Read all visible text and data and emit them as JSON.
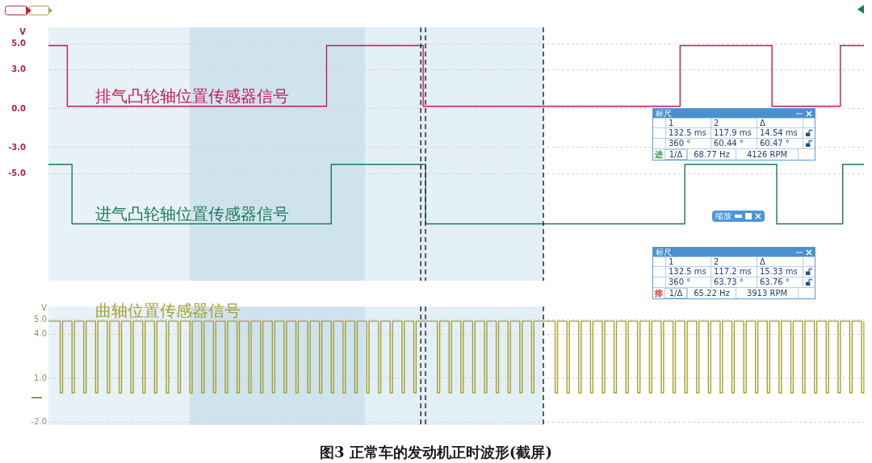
{
  "chart_data": [
    {
      "type": "step",
      "ylabel": "V",
      "categories": [
        null,
        null,
        null,
        null,
        null,
        null,
        null,
        null,
        null,
        null,
        null,
        null,
        null,
        null,
        null,
        null,
        null,
        null,
        null,
        null,
        null,
        null,
        null,
        null,
        null,
        null,
        null,
        null,
        null,
        null,
        null,
        null,
        null,
        null,
        null,
        null,
        null,
        null,
        null,
        null,
        null,
        null,
        null,
        null,
        null,
        null,
        null,
        null,
        null,
        null,
        null,
        null,
        null,
        null,
        null,
        null,
        null,
        null,
        null,
        null,
        null,
        null,
        null,
        null,
        null,
        null,
        null,
        null,
        null,
        null,
        null,
        null,
        null,
        null,
        null,
        null,
        null,
        null,
        null,
        null,
        null,
        null,
        null,
        null,
        null,
        null,
        null,
        null,
        null,
        null,
        null,
        null,
        null,
        null,
        null,
        null,
        null,
        null,
        null,
        null,
        null,
        null,
        null,
        null,
        null,
        null,
        null,
        null,
        null,
        null,
        null,
        null,
        null,
        null,
        null,
        null,
        null,
        null,
        null,
        null,
        null,
        null,
        null,
        null,
        null,
        null,
        null,
        null,
        null,
        null,
        null,
        null,
        null,
        null,
        null,
        null,
        null,
        null,
        null,
        null,
        null,
        null,
        null,
        null,
        null,
        null,
        null,
        null,
        null,
        null,
        null,
        null,
        null,
        null,
        null,
        null,
        null,
        null,
        null,
        null,
        null,
        null,
        null,
        null,
        null,
        null,
        null,
        null,
        null,
        null,
        null,
        null,
        null,
        null,
        null,
        null,
        null,
        null,
        null,
        null,
        null,
        null,
        null,
        null,
        null,
        null,
        null,
        null,
        null,
        null,
        null,
        null,
        null,
        null,
        null,
        null,
        null,
        null,
        null,
        null,
        null,
        null,
        null,
        null,
        null,
        null,
        null,
        null,
        null,
        null,
        null,
        null,
        null,
        null,
        null,
        null,
        null,
        null,
        null,
        null,
        null,
        null,
        null,
        null,
        null,
        null,
        null,
        null,
        null,
        null,
        null,
        null,
        null,
        null,
        null,
        null,
        null,
        null,
        null,
        null,
        null,
        null,
        null,
        null,
        null,
        null,
        null,
        null,
        null,
        null,
        null,
        null,
        null,
        null,
        null,
        null,
        null,
        null,
        null,
        null,
        null,
        null,
        null,
        null,
        null,
        null,
        null,
        null,
        null,
        null,
        null,
        null,
        null,
        null,
        null,
        null,
        null,
        null,
        null,
        null,
        null,
        null,
        null,
        null,
        null,
        null,
        null,
        null,
        null,
        null,
        null,
        null,
        null,
        null,
        null,
        null,
        null,
        null,
        null,
        null,
        null,
        null,
        null,
        null,
        null,
        null,
        null,
        null,
        null,
        null,
        null,
        null,
        null,
        null,
        null,
        null,
        null,
        null,
        null,
        null,
        null,
        null,
        null,
        null,
        null,
        null,
        null,
        null,
        null,
        null,
        null,
        null,
        null,
        null,
        null,
        null,
        null,
        null,
        null,
        null,
        null,
        null,
        null,
        null,
        null,
        null,
        null
      ],
      "series": [
        {
          "name": "排气凸轮轴位置传感器信号",
          "color": "#c8174f",
          "values": [
            4.9,
            4.9,
            4.9,
            4.9,
            4.9,
            4.9,
            4.9,
            4.9,
            0.2,
            0.2,
            0.2,
            0.2,
            0.2,
            0.2,
            0.2,
            0.2,
            0.2,
            0.2,
            0.2,
            0.2,
            0.2,
            0.2,
            0.2,
            0.2,
            0.2,
            0.2,
            0.2,
            0.2,
            0.2,
            0.2,
            0.2,
            0.2,
            0.2,
            0.2,
            0.2,
            0.2,
            0.2,
            0.2,
            0.2,
            0.2,
            0.2,
            0.2,
            0.2,
            0.2,
            0.2,
            0.2,
            0.2,
            0.2,
            0.2,
            0.2,
            0.2,
            0.2,
            0.2,
            0.2,
            0.2,
            0.2,
            0.2,
            0.2,
            0.2,
            0.2,
            0.2,
            0.2,
            0.2,
            0.2,
            0.2,
            0.2,
            0.2,
            0.2,
            0.2,
            0.2,
            0.2,
            0.2,
            0.2,
            0.2,
            0.2,
            0.2,
            0.2,
            0.2,
            0.2,
            0.2,
            0.2,
            0.2,
            0.2,
            0.2,
            0.2,
            0.2,
            0.2,
            0.2,
            0.2,
            0.2,
            0.2,
            0.2,
            0.2,
            0.2,
            0.2,
            0.2,
            0.2,
            0.2,
            0.2,
            0.2,
            0.2,
            0.2,
            0.2,
            0.2,
            0.2,
            0.2,
            0.2,
            0.2,
            0.2,
            0.2,
            0.2,
            0.2,
            0.2,
            0.2,
            0.2,
            0.2,
            0.2,
            0.2,
            4.9,
            4.9,
            4.9,
            4.9,
            4.9,
            4.9,
            4.9,
            4.9,
            4.9,
            4.9,
            4.9,
            4.9,
            4.9,
            4.9,
            4.9,
            4.9,
            4.9,
            4.9,
            4.9,
            4.9,
            4.9,
            4.9,
            4.9,
            4.9,
            4.9,
            4.9,
            4.9,
            4.9,
            4.9,
            4.9,
            4.9,
            4.9,
            4.9,
            4.9,
            4.9,
            4.9,
            4.9,
            4.9,
            4.9,
            4.9,
            4.9,
            0.2,
            0.2,
            0.2,
            0.2,
            0.2,
            0.2,
            0.2,
            0.2,
            0.2,
            0.2,
            0.2,
            0.2,
            0.2,
            0.2,
            0.2,
            0.2,
            0.2,
            0.2,
            0.2,
            0.2,
            0.2,
            0.2,
            0.2,
            0.2,
            0.2,
            0.2,
            0.2,
            0.2,
            0.2,
            0.2,
            0.2,
            0.2,
            0.2,
            0.2,
            0.2,
            0.2,
            0.2,
            0.2,
            0.2,
            0.2,
            0.2,
            0.2,
            0.2,
            0.2,
            0.2,
            0.2,
            0.2,
            0.2,
            0.2,
            0.2,
            0.2,
            0.2,
            0.2,
            0.2,
            0.2,
            0.2,
            0.2,
            0.2,
            0.2,
            0.2,
            0.2,
            0.2,
            0.2,
            0.2,
            0.2,
            0.2,
            0.2,
            0.2,
            0.2,
            0.2,
            0.2,
            0.2,
            0.2,
            0.2,
            0.2,
            0.2,
            0.2,
            0.2,
            0.2,
            0.2,
            0.2,
            0.2,
            0.2,
            0.2,
            0.2,
            0.2,
            0.2,
            0.2,
            0.2,
            0.2,
            0.2,
            0.2,
            0.2,
            0.2,
            0.2,
            0.2,
            0.2,
            0.2,
            0.2,
            0.2,
            0.2,
            0.2,
            0.2,
            0.2,
            0.2,
            0.2,
            0.2,
            0.2,
            0.2,
            4.9,
            4.9,
            4.9,
            4.9,
            4.9,
            4.9,
            4.9,
            4.9,
            4.9,
            4.9,
            4.9,
            4.9,
            4.9,
            4.9,
            4.9,
            4.9,
            4.9,
            4.9,
            4.9,
            4.9,
            4.9,
            4.9,
            4.9,
            4.9,
            4.9,
            4.9,
            4.9,
            4.9,
            4.9,
            4.9,
            4.9,
            4.9,
            4.9,
            4.9,
            4.9,
            4.9,
            4.9,
            4.9,
            4.9,
            0.2,
            0.2,
            0.2,
            0.2,
            0.2,
            0.2,
            0.2,
            0.2,
            0.2,
            0.2,
            0.2,
            0.2,
            0.2,
            0.2,
            0.2,
            0.2,
            0.2,
            0.2,
            0.2,
            0.2,
            0.2,
            0.2,
            0.2,
            0.2,
            0.2,
            0.2,
            0.2,
            0.2,
            0.2,
            4.9,
            4.9,
            4.9,
            4.9,
            4.9,
            4.9,
            4.9,
            4.9,
            4.9,
            4.9,
            4.9
          ]
        },
        {
          "name": "进气凸轮轴位置传感器信号",
          "color": "#1b7a55",
          "values": [
            -4.3,
            -4.3,
            -4.3,
            -4.3,
            -4.3,
            -4.3,
            -4.3,
            -4.3,
            -4.3,
            -4.3,
            -8.9,
            -8.9,
            -8.9,
            -8.9,
            -8.9,
            -8.9,
            -8.9,
            -8.9,
            -8.9,
            -8.9,
            -8.9,
            -8.9,
            -8.9,
            -8.9,
            -8.9,
            -8.9,
            -8.9,
            -8.9,
            -8.9,
            -8.9,
            -8.9,
            -8.9,
            -8.9,
            -8.9,
            -8.9,
            -8.9,
            -8.9,
            -8.9,
            -8.9,
            -8.9,
            -8.9,
            -8.9,
            -8.9,
            -8.9,
            -8.9,
            -8.9,
            -8.9,
            -8.9,
            -8.9,
            -8.9,
            -8.9,
            -8.9,
            -8.9,
            -8.9,
            -8.9,
            -8.9,
            -8.9,
            -8.9,
            -8.9,
            -8.9,
            -8.9,
            -8.9,
            -8.9,
            -8.9,
            -8.9,
            -8.9,
            -8.9,
            -8.9,
            -8.9,
            -8.9,
            -8.9,
            -8.9,
            -8.9,
            -8.9,
            -8.9,
            -8.9,
            -8.9,
            -8.9,
            -8.9,
            -8.9,
            -8.9,
            -8.9,
            -8.9,
            -8.9,
            -8.9,
            -8.9,
            -8.9,
            -8.9,
            -8.9,
            -8.9,
            -8.9,
            -8.9,
            -8.9,
            -8.9,
            -8.9,
            -8.9,
            -8.9,
            -8.9,
            -8.9,
            -8.9,
            -8.9,
            -8.9,
            -8.9,
            -8.9,
            -8.9,
            -8.9,
            -8.9,
            -8.9,
            -8.9,
            -8.9,
            -8.9,
            -8.9,
            -8.9,
            -8.9,
            -8.9,
            -8.9,
            -8.9,
            -8.9,
            -8.9,
            -8.9,
            -4.3,
            -4.3,
            -4.3,
            -4.3,
            -4.3,
            -4.3,
            -4.3,
            -4.3,
            -4.3,
            -4.3,
            -4.3,
            -4.3,
            -4.3,
            -4.3,
            -4.3,
            -4.3,
            -4.3,
            -4.3,
            -4.3,
            -4.3,
            -4.3,
            -4.3,
            -4.3,
            -4.3,
            -4.3,
            -4.3,
            -4.3,
            -4.3,
            -4.3,
            -4.3,
            -4.3,
            -4.3,
            -4.3,
            -4.3,
            -4.3,
            -4.3,
            -4.3,
            -4.3,
            -4.3,
            -4.3,
            -8.9,
            -8.9,
            -8.9,
            -8.9,
            -8.9,
            -8.9,
            -8.9,
            -8.9,
            -8.9,
            -8.9,
            -8.9,
            -8.9,
            -8.9,
            -8.9,
            -8.9,
            -8.9,
            -8.9,
            -8.9,
            -8.9,
            -8.9,
            -8.9,
            -8.9,
            -8.9,
            -8.9,
            -8.9,
            -8.9,
            -8.9,
            -8.9,
            -8.9,
            -8.9,
            -8.9,
            -8.9,
            -8.9,
            -8.9,
            -8.9,
            -8.9,
            -8.9,
            -8.9,
            -8.9,
            -8.9,
            -8.9,
            -8.9,
            -8.9,
            -8.9,
            -8.9,
            -8.9,
            -8.9,
            -8.9,
            -8.9,
            -8.9,
            -8.9,
            -8.9,
            -8.9,
            -8.9,
            -8.9,
            -8.9,
            -8.9,
            -8.9,
            -8.9,
            -8.9,
            -8.9,
            -8.9,
            -8.9,
            -8.9,
            -8.9,
            -8.9,
            -8.9,
            -8.9,
            -8.9,
            -8.9,
            -8.9,
            -8.9,
            -8.9,
            -8.9,
            -8.9,
            -8.9,
            -8.9,
            -8.9,
            -8.9,
            -8.9,
            -8.9,
            -8.9,
            -8.9,
            -8.9,
            -8.9,
            -8.9,
            -8.9,
            -8.9,
            -8.9,
            -8.9,
            -8.9,
            -8.9,
            -8.9,
            -8.9,
            -8.9,
            -8.9,
            -8.9,
            -8.9,
            -8.9,
            -8.9,
            -8.9,
            -8.9,
            -8.9,
            -8.9,
            -8.9,
            -8.9,
            -8.9,
            -8.9,
            -8.9,
            -8.9,
            -4.3,
            -4.3,
            -4.3,
            -4.3,
            -4.3,
            -4.3,
            -4.3,
            -4.3,
            -4.3,
            -4.3,
            -4.3,
            -4.3,
            -4.3,
            -4.3,
            -4.3,
            -4.3,
            -4.3,
            -4.3,
            -4.3,
            -4.3,
            -4.3,
            -4.3,
            -4.3,
            -4.3,
            -4.3,
            -4.3,
            -4.3,
            -4.3,
            -4.3,
            -4.3,
            -4.3,
            -4.3,
            -4.3,
            -4.3,
            -4.3,
            -4.3,
            -4.3,
            -4.3,
            -4.3,
            -8.9,
            -8.9,
            -8.9,
            -8.9,
            -8.9,
            -8.9,
            -8.9,
            -8.9,
            -8.9,
            -8.9,
            -8.9,
            -8.9,
            -8.9,
            -8.9,
            -8.9,
            -8.9,
            -8.9,
            -8.9,
            -8.9,
            -8.9,
            -8.9,
            -8.9,
            -8.9,
            -8.9,
            -8.9,
            -8.9,
            -8.9,
            -8.9,
            -4.3,
            -4.3,
            -4.3,
            -4.3,
            -4.3,
            -4.3,
            -4.3,
            -4.3,
            -4.3,
            -4.3
          ]
        }
      ],
      "ylim": [
        -13.3,
        6.3
      ],
      "yticks": [
        {
          "value": 5,
          "label": "5.0"
        },
        {
          "value": 3,
          "label": "3.0"
        },
        {
          "value": 0,
          "label": "0.0"
        },
        {
          "value": -3,
          "label": "-3.0"
        },
        {
          "value": -5,
          "label": "-5.0"
        }
      ],
      "tick_labels": "y",
      "grid": "y",
      "marker": "none",
      "line_style": "solid"
    },
    {
      "type": "step",
      "title": "图3 正常车的发动机正时波形(截屏)",
      "ylabel": "V",
      "categories": [
        null,
        null,
        null,
        null,
        null,
        null,
        null,
        null,
        null,
        null,
        null,
        null,
        null,
        null,
        null,
        null,
        null,
        null,
        null,
        null,
        null,
        null,
        null,
        null,
        null,
        null,
        null,
        null,
        null,
        null,
        null,
        null,
        null,
        null,
        null,
        null,
        null,
        null,
        null,
        null,
        null,
        null,
        null,
        null,
        null,
        null,
        null,
        null,
        null,
        null,
        null,
        null,
        null,
        null,
        null,
        null,
        null,
        null,
        null,
        null,
        null,
        null,
        null,
        null,
        null,
        null,
        null,
        null,
        null,
        null,
        null,
        null,
        null,
        null,
        null,
        null,
        null,
        null,
        null,
        null,
        null,
        null,
        null,
        null,
        null,
        null,
        null,
        null,
        null,
        null,
        null,
        null,
        null,
        null,
        null,
        null,
        null,
        null,
        null,
        null,
        null,
        null,
        null,
        null,
        null,
        null,
        null,
        null,
        null,
        null,
        null,
        null,
        null,
        null,
        null,
        null,
        null,
        null,
        null,
        null,
        null,
        null,
        null,
        null,
        null,
        null,
        null,
        null,
        null,
        null,
        null,
        null,
        null,
        null,
        null,
        null,
        null,
        null,
        null,
        null,
        null,
        null,
        null,
        null,
        null,
        null,
        null,
        null,
        null,
        null,
        null,
        null,
        null,
        null,
        null,
        null,
        null,
        null,
        null,
        null,
        null,
        null,
        null,
        null,
        null,
        null,
        null,
        null,
        null,
        null,
        null,
        null,
        null,
        null,
        null,
        null,
        null,
        null,
        null,
        null,
        null,
        null,
        null,
        null,
        null,
        null,
        null,
        null,
        null,
        null,
        null,
        null,
        null,
        null,
        null,
        null,
        null,
        null,
        null,
        null,
        null,
        null,
        null,
        null,
        null,
        null,
        null,
        null,
        null,
        null,
        null,
        null,
        null,
        null,
        null,
        null,
        null,
        null,
        null,
        null,
        null,
        null,
        null,
        null,
        null,
        null,
        null,
        null,
        null,
        null,
        null,
        null,
        null,
        null,
        null,
        null,
        null,
        null,
        null,
        null,
        null,
        null,
        null,
        null,
        null,
        null,
        null,
        null,
        null,
        null,
        null,
        null,
        null,
        null,
        null,
        null,
        null,
        null,
        null,
        null,
        null,
        null,
        null,
        null,
        null,
        null,
        null,
        null,
        null,
        null,
        null,
        null,
        null,
        null,
        null,
        null,
        null,
        null,
        null,
        null,
        null,
        null,
        null,
        null,
        null,
        null,
        null,
        null,
        null,
        null,
        null,
        null,
        null,
        null,
        null,
        null,
        null,
        null,
        null,
        null,
        null,
        null,
        null,
        null,
        null,
        null,
        null,
        null,
        null,
        null,
        null,
        null,
        null,
        null,
        null,
        null,
        null,
        null,
        null,
        null,
        null,
        null,
        null,
        null,
        null,
        null,
        null,
        null,
        null,
        null,
        null,
        null,
        null,
        null,
        null,
        null,
        null,
        null,
        null,
        null,
        null,
        null,
        null,
        null,
        null,
        null,
        null
      ],
      "series": [
        {
          "name": "曲轴位置传感器信号",
          "color": "#a6a12c",
          "values": [
            4.9,
            4.9,
            4.9,
            4.9,
            4.9,
            0,
            4.9,
            4.9,
            4.9,
            4.9,
            0,
            4.9,
            4.9,
            4.9,
            4.9,
            0,
            4.9,
            4.9,
            4.9,
            4.9,
            0,
            4.9,
            4.9,
            4.9,
            4.9,
            0,
            4.9,
            4.9,
            4.9,
            4.9,
            0,
            4.9,
            4.9,
            4.9,
            4.9,
            0,
            4.9,
            4.9,
            4.9,
            4.9,
            0,
            4.9,
            4.9,
            4.9,
            4.9,
            0,
            4.9,
            4.9,
            4.9,
            4.9,
            0,
            4.9,
            4.9,
            4.9,
            4.9,
            0,
            4.9,
            4.9,
            4.9,
            4.9,
            0,
            4.9,
            4.9,
            4.9,
            4.9,
            0,
            4.9,
            4.9,
            4.9,
            4.9,
            0,
            4.9,
            4.9,
            4.9,
            4.9,
            0,
            4.9,
            4.9,
            4.9,
            4.9,
            0,
            4.9,
            4.9,
            4.9,
            4.9,
            0,
            4.9,
            4.9,
            4.9,
            4.9,
            0,
            4.9,
            4.9,
            4.9,
            4.9,
            0,
            4.9,
            4.9,
            4.9,
            4.9,
            0,
            4.9,
            4.9,
            4.9,
            4.9,
            0,
            4.9,
            4.9,
            4.9,
            4.9,
            0,
            4.9,
            4.9,
            4.9,
            4.9,
            0,
            4.9,
            4.9,
            4.9,
            4.9,
            0,
            4.9,
            4.9,
            4.9,
            4.9,
            0,
            4.9,
            4.9,
            4.9,
            4.9,
            0,
            4.9,
            4.9,
            4.9,
            4.9,
            0,
            4.9,
            4.9,
            4.9,
            4.9,
            0,
            4.9,
            4.9,
            4.9,
            4.9,
            0,
            4.9,
            4.9,
            4.9,
            4.9,
            0,
            4.9,
            4.9,
            4.9,
            4.9,
            0,
            4.9,
            4.9,
            4.9,
            4.9,
            4.9,
            4.9,
            4.9,
            4.9,
            4.9,
            0,
            4.9,
            4.9,
            4.9,
            4.9,
            0,
            4.9,
            4.9,
            4.9,
            4.9,
            0,
            4.9,
            4.9,
            4.9,
            4.9,
            0,
            4.9,
            4.9,
            4.9,
            4.9,
            0,
            4.9,
            4.9,
            4.9,
            4.9,
            0,
            4.9,
            4.9,
            4.9,
            4.9,
            0,
            4.9,
            4.9,
            4.9,
            4.9,
            0,
            4.9,
            4.9,
            4.9,
            4.9,
            0,
            4.9,
            4.9,
            4.9,
            4.9,
            4.9,
            4.9,
            4.9,
            4.9,
            4.9,
            0,
            4.9,
            4.9,
            4.9,
            4.9,
            0,
            4.9,
            4.9,
            4.9,
            4.9,
            0,
            4.9,
            4.9,
            4.9,
            4.9,
            0,
            4.9,
            4.9,
            4.9,
            4.9,
            0,
            4.9,
            4.9,
            4.9,
            4.9,
            0,
            4.9,
            4.9,
            4.9,
            4.9,
            0,
            4.9,
            4.9,
            4.9,
            4.9,
            0,
            4.9,
            4.9,
            4.9,
            4.9,
            0,
            4.9,
            4.9,
            4.9,
            4.9,
            0,
            4.9,
            4.9,
            4.9,
            4.9,
            0,
            4.9,
            4.9,
            4.9,
            4.9,
            0,
            4.9,
            4.9,
            4.9,
            4.9,
            0,
            4.9,
            4.9,
            4.9,
            4.9,
            0,
            4.9,
            4.9,
            4.9,
            4.9,
            0,
            4.9,
            4.9,
            4.9,
            4.9,
            0,
            4.9,
            4.9,
            4.9,
            4.9,
            0,
            4.9,
            4.9,
            4.9,
            4.9,
            0,
            4.9,
            4.9,
            4.9,
            4.9,
            0,
            4.9,
            4.9,
            4.9,
            4.9,
            0,
            4.9,
            4.9,
            4.9,
            4.9,
            0,
            4.9,
            4.9,
            4.9,
            4.9,
            0,
            4.9,
            4.9,
            4.9,
            4.9,
            0,
            4.9,
            4.9,
            4.9,
            4.9,
            0,
            4.9,
            4.9,
            4.9,
            4.9,
            0,
            4.9,
            4.9,
            4.9,
            4.9,
            0,
            4.9,
            4.9,
            4.9,
            4.9,
            0,
            4.9
          ]
        }
      ],
      "ylim": [
        -2.2,
        5.9
      ],
      "yticks": [
        {
          "value": 5,
          "label": "5.0"
        },
        {
          "value": 4,
          "label": "4.0"
        },
        {
          "value": 1,
          "label": "1.0"
        },
        {
          "value": -2,
          "label": "-2.0"
        }
      ],
      "tick_labels": "y",
      "grid": "y",
      "marker": "none",
      "line_style": "solid"
    },
    {
      "type": "other",
      "title": "标尺",
      "color": "#2e9a3e",
      "annotations": [
        "1",
        "2",
        "Δ",
        "132.5 ms",
        "117.9 ms",
        "14.54 ms",
        "360 °",
        "60.44 °",
        "60.47 °",
        "进",
        "1/Δ",
        "68.77 Hz",
        "4126 RPM"
      ]
    },
    {
      "type": "other",
      "title": "标尺",
      "color": "#e02020",
      "annotations": [
        "1",
        "2",
        "Δ",
        "132.5 ms",
        "117.2 ms",
        "15.33 ms",
        "360 °",
        "63.73 °",
        "63.76 °",
        "排",
        "1/Δ",
        "65.22 Hz",
        "3913 RPM"
      ]
    },
    {
      "type": "other",
      "annotations": [
        "缩放"
      ]
    }
  ]
}
